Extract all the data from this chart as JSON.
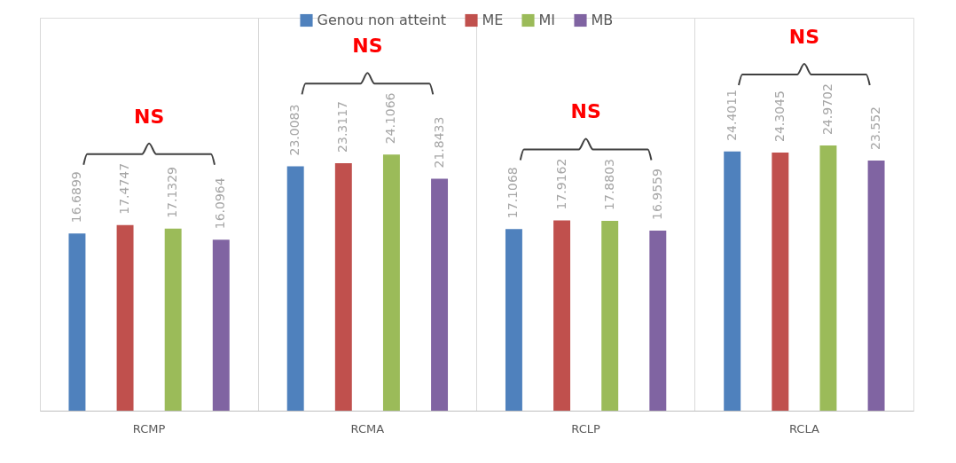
{
  "chart_data": {
    "type": "bar",
    "categories": [
      "RCMP",
      "RCMA",
      "RCLP",
      "RCLA"
    ],
    "series": [
      {
        "name": "Genou non atteint",
        "color": "#4f81bd",
        "values": [
          16.6899,
          23.0083,
          17.1068,
          24.4011
        ]
      },
      {
        "name": "ME",
        "color": "#c0504d",
        "values": [
          17.4747,
          23.3117,
          17.9162,
          24.3045
        ]
      },
      {
        "name": "MI",
        "color": "#9bbb59",
        "values": [
          17.1329,
          24.1066,
          17.8803,
          24.9702
        ]
      },
      {
        "name": "MB",
        "color": "#8064a2",
        "values": [
          16.0964,
          21.8433,
          16.9559,
          23.552
        ]
      }
    ],
    "data_labels": true,
    "ylim": [
      0,
      37
    ],
    "tick_labels": "x",
    "grid": "x",
    "legend": "top",
    "annotations": [
      "NS",
      "NS",
      "NS",
      "NS"
    ]
  }
}
